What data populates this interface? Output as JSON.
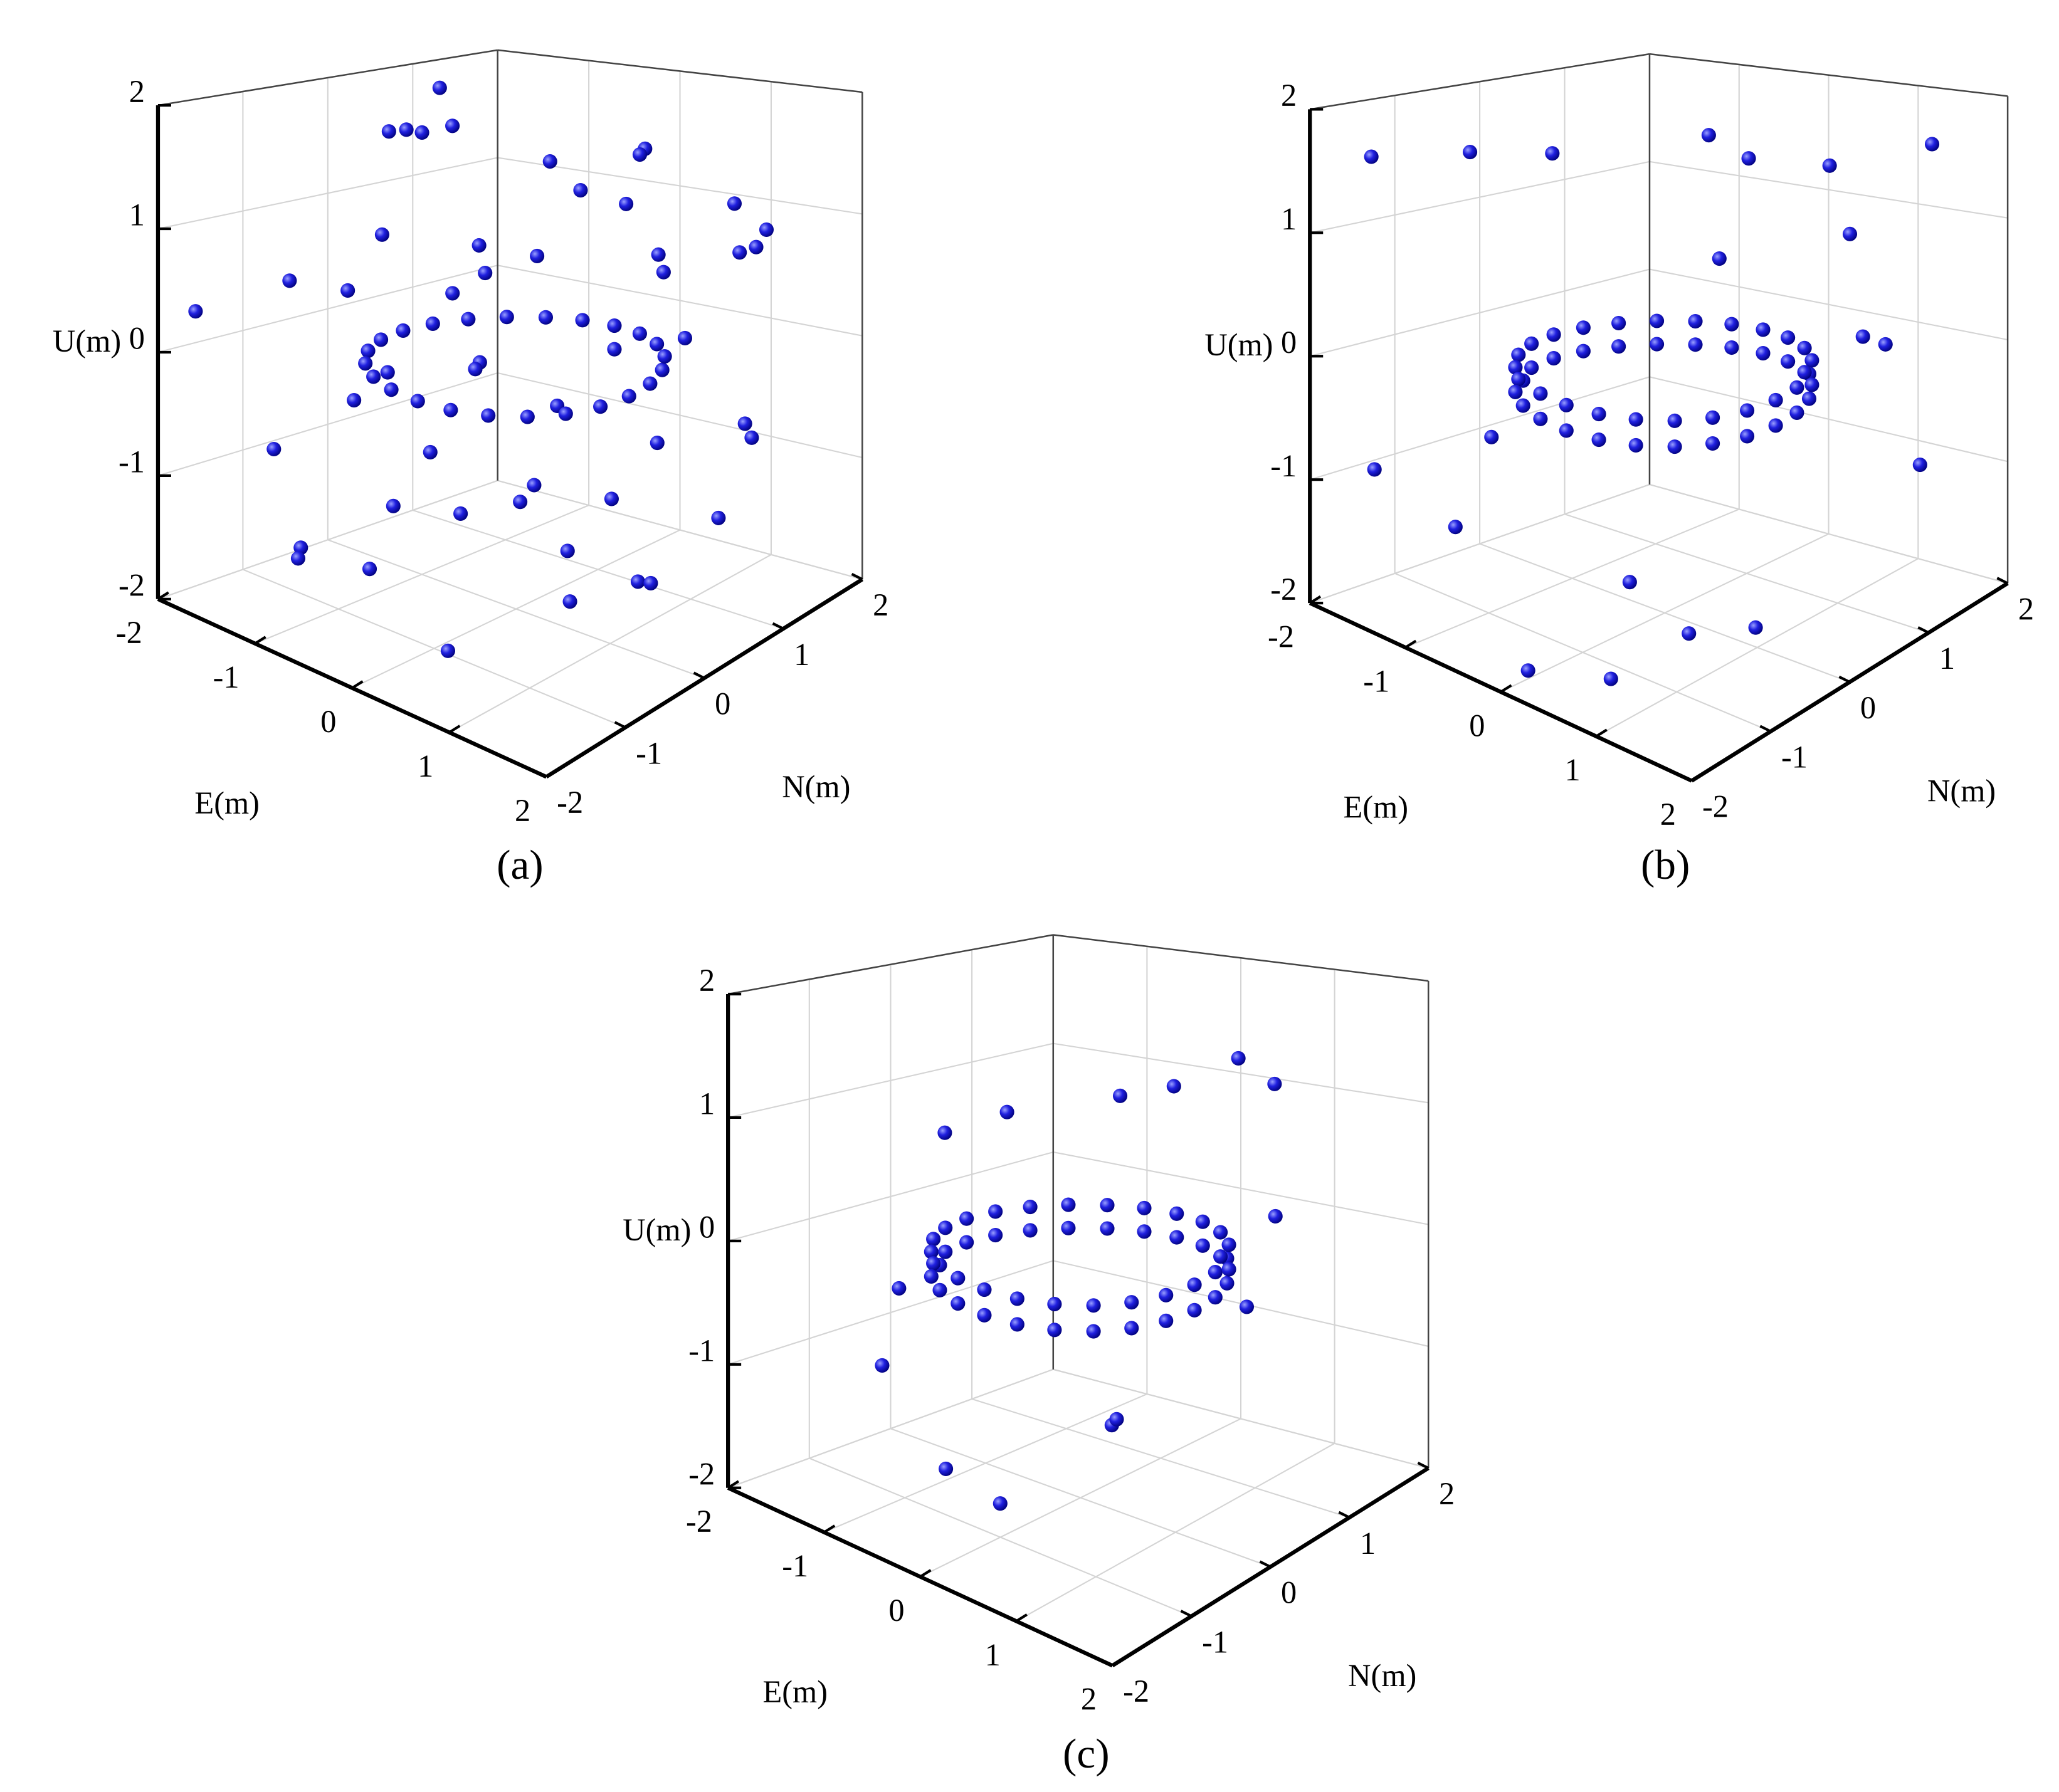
{
  "chart_data": [
    {
      "type": "scatter3d",
      "caption": "(a)",
      "xlabel": "E(m)",
      "ylabel": "N(m)",
      "zlabel": "U(m)",
      "color": "#1010d0",
      "xlim": [
        -2,
        2
      ],
      "ylim": [
        -2,
        2
      ],
      "zlim": [
        -2,
        2
      ],
      "xticks": [
        -2,
        -1,
        0,
        1,
        2
      ],
      "yticks": [
        -2,
        -1,
        0,
        1,
        2
      ],
      "zticks": [
        -2,
        -1,
        0,
        1,
        2
      ],
      "grid": true,
      "x": [
        -1.8,
        -1.5,
        -1.2,
        -0.9,
        -0.6,
        -0.3,
        0,
        0.3,
        0.6,
        0.9,
        1.2,
        1.5,
        1.8,
        -1.7,
        -1.3,
        -0.8,
        -0.4,
        0.2,
        0.7,
        1.1,
        1.6,
        -1.9,
        -1.1,
        -0.5,
        0.4,
        0.8,
        1.4,
        -1.6,
        -1.0,
        -0.2,
        0.5,
        1.0,
        1.7,
        -1.4,
        -0.7,
        0.1,
        0.9,
        1.3,
        -1.2,
        -0.1,
        0.6,
        1.5,
        -1.8,
        -0.9,
        0.3,
        1.1,
        1.9,
        -0.6,
        0.0,
        0.7,
        1.2,
        1.16,
        1.04,
        0.85,
        0.6,
        0.31,
        0,
        -0.31,
        -0.6,
        -0.85,
        -1.04,
        -1.16,
        -1.2,
        -1.16,
        -1.04,
        -0.85,
        -0.6,
        -0.31,
        0,
        0.31,
        0.6,
        0.85,
        1.04,
        1.16
      ],
      "y": [
        0.5,
        -1.2,
        1.6,
        -0.3,
        0.9,
        -1.7,
        1.2,
        -0.8,
        1.8,
        -1.5,
        0.2,
        1.1,
        -0.6,
        -1.9,
        0.7,
        1.4,
        -1.1,
        0.4,
        -1.6,
        1.7,
        -0.2,
        1.0,
        -0.7,
        1.9,
        -1.3,
        0.6,
        1.3,
        -0.9,
        0.1,
        -1.4,
        1.5,
        -0.5,
        0.8,
        1.2,
        -1.8,
        0.3,
        -1.0,
        1.6,
        -0.4,
        0.9,
        -1.2,
        0.0,
        1.1,
        -1.6,
        1.4,
        -0.1,
        0.5,
        -0.8,
        1.8,
        -1.5,
        0,
        0.31,
        0.6,
        0.85,
        1.04,
        1.16,
        1.2,
        1.16,
        1.04,
        0.85,
        0.6,
        0.31,
        0,
        -0.31,
        -0.6,
        -0.85,
        -1.04,
        -1.16,
        -1.2,
        -1.16,
        -1.04,
        -0.85,
        -0.6,
        -0.31
      ],
      "z": [
        1.5,
        -0.8,
        0.3,
        1.8,
        -1.4,
        0.9,
        -0.2,
        1.2,
        -1.7,
        0.6,
        1.9,
        -0.5,
        -1.1,
        0.4,
        1.6,
        -0.9,
        0.1,
        -1.6,
        1.1,
        0.7,
        -1.3,
        1.4,
        -0.4,
        0.8,
        -1.8,
        1.7,
        -0.7,
        0.5,
        -1.0,
        1.3,
        -0.1,
        -1.5,
        1.0,
        0.2,
        -1.2,
        1.6,
        -0.6,
        0.9,
        -1.9,
        1.2,
        0.4,
        -0.3,
        1.8,
        -1.4,
        0.6,
        -0.8,
        1.5,
        -1.1,
        0.3,
        -0.6,
        0,
        0,
        0,
        0,
        0,
        0,
        0,
        0,
        0,
        0,
        0,
        0,
        0,
        0,
        0,
        0,
        0,
        0,
        0,
        0,
        0,
        0,
        0,
        0
      ]
    },
    {
      "type": "scatter3d",
      "caption": "(b)",
      "xlabel": "E(m)",
      "ylabel": "N(m)",
      "zlabel": "U(m)",
      "color": "#1010d0",
      "xlim": [
        -2,
        2
      ],
      "ylim": [
        -2,
        2
      ],
      "zlim": [
        -2,
        2
      ],
      "xticks": [
        -2,
        -1,
        0,
        1,
        2
      ],
      "yticks": [
        -2,
        -1,
        0,
        1,
        2
      ],
      "zticks": [
        -2,
        -1,
        0,
        1,
        2
      ],
      "grid": true,
      "x": [
        -1.8,
        -1.2,
        -0.5,
        0.3,
        1.0,
        1.6,
        -1.5,
        1.3,
        0.6,
        -0.8,
        1.8,
        1.5,
        -1.6,
        -1.0,
        0.9,
        1.2,
        0.2,
        -0.3,
        1.7,
        0.5,
        1.2,
        1.16,
        1.04,
        0.85,
        0.6,
        0.31,
        0,
        -0.31,
        -0.6,
        -0.85,
        -1.04,
        -1.16,
        -1.2,
        -1.16,
        -1.04,
        -0.85,
        -0.6,
        -0.31,
        0,
        0.31,
        0.6,
        0.85,
        1.04,
        1.16,
        1.2,
        1.16,
        1.04,
        0.85,
        0.6,
        0.31,
        0,
        -0.31,
        -0.6,
        -0.85,
        -1.04,
        -1.16,
        -1.2,
        -1.16,
        -1.04,
        -0.85,
        -0.6,
        -0.31,
        0,
        0.31,
        0.6,
        0.85,
        1.04,
        1.16
      ],
      "y": [
        -1.5,
        -1.0,
        -0.8,
        0.2,
        0.9,
        1.5,
        -1.8,
        -1.2,
        1.6,
        1.9,
        0.4,
        -0.6,
        -0.3,
        -1.4,
        -1.7,
        1.8,
        -1.9,
        1.0,
        0.8,
        -1.0,
        0,
        0.31,
        0.6,
        0.85,
        1.04,
        1.16,
        1.2,
        1.16,
        1.04,
        0.85,
        0.6,
        0.31,
        0,
        -0.31,
        -0.6,
        -0.85,
        -1.04,
        -1.16,
        -1.2,
        -1.16,
        -1.04,
        -0.85,
        -0.6,
        -0.31,
        0,
        0.31,
        0.6,
        0.85,
        1.04,
        1.16,
        1.2,
        1.16,
        1.04,
        0.85,
        0.6,
        0.31,
        0,
        -0.31,
        -0.6,
        -0.85,
        -1.04,
        -1.16,
        -1.2,
        -1.16,
        -1.04,
        -0.85,
        -0.6,
        -0.31
      ],
      "z": [
        1.6,
        1.7,
        1.8,
        1.9,
        1.6,
        1.7,
        -0.8,
        -1.4,
        0.8,
        1.2,
        0.5,
        -1.5,
        -0.9,
        -1.2,
        -1.7,
        -1.1,
        -1.8,
        0.6,
        0.3,
        -1.3,
        0,
        0,
        0,
        0,
        0,
        0,
        0,
        0,
        0,
        0,
        0,
        0,
        0,
        0,
        0,
        0,
        0,
        0,
        0,
        0,
        0,
        0,
        0,
        0,
        -0.2,
        -0.2,
        -0.2,
        -0.2,
        -0.2,
        -0.2,
        -0.2,
        -0.2,
        -0.2,
        -0.2,
        -0.2,
        -0.2,
        -0.2,
        -0.2,
        -0.2,
        -0.2,
        -0.2,
        -0.2,
        -0.2,
        -0.2,
        -0.2,
        -0.2,
        -0.2,
        -0.2
      ]
    },
    {
      "type": "scatter3d",
      "caption": "(c)",
      "xlabel": "E(m)",
      "ylabel": "N(m)",
      "zlabel": "U(m)",
      "color": "#1010d0",
      "xlim": [
        -2,
        2
      ],
      "ylim": [
        -2,
        2
      ],
      "zlim": [
        -2,
        2
      ],
      "xticks": [
        -2,
        -1,
        0,
        1,
        2
      ],
      "yticks": [
        -2,
        -1,
        0,
        1,
        2
      ],
      "zticks": [
        -2,
        -1,
        0,
        1,
        2
      ],
      "grid": true,
      "x": [
        -1.2,
        -0.6,
        0.4,
        0.7,
        1.0,
        -1.4,
        1.3,
        -0.9,
        0.1,
        0.5,
        -0.2,
        1.5,
        -1.6,
        0.8,
        1.2,
        1.16,
        1.04,
        0.85,
        0.6,
        0.31,
        0,
        -0.31,
        -0.6,
        -0.85,
        -1.04,
        -1.16,
        -1.2,
        -1.16,
        -1.04,
        -0.85,
        -0.6,
        -0.31,
        0,
        0.31,
        0.6,
        0.85,
        1.04,
        1.16,
        1.2,
        1.16,
        1.04,
        0.85,
        0.6,
        0.31,
        0,
        -0.31,
        -0.6,
        -0.85,
        -1.04,
        -1.16,
        -1.2,
        -1.16,
        -1.04,
        -0.85,
        -0.6,
        -0.31,
        0,
        0.31,
        0.6,
        0.85,
        1.04,
        1.16
      ],
      "y": [
        0.5,
        1.2,
        1.5,
        1.6,
        -0.8,
        -0.6,
        0.9,
        -1.4,
        -1.8,
        -1.6,
        1.4,
        0.3,
        0.2,
        -0.5,
        0,
        0.31,
        0.6,
        0.85,
        1.04,
        1.16,
        1.2,
        1.16,
        1.04,
        0.85,
        0.6,
        0.31,
        0,
        -0.31,
        -0.6,
        -0.85,
        -1.04,
        -1.16,
        -1.2,
        -1.16,
        -1.04,
        -0.85,
        -0.6,
        -0.31,
        0,
        0.31,
        0.6,
        0.85,
        1.04,
        1.16,
        1.2,
        1.16,
        1.04,
        0.85,
        0.6,
        0.31,
        0,
        -0.31,
        -0.6,
        -0.85,
        -1.04,
        -1.16,
        -1.2,
        -1.16,
        -1.04,
        -0.85,
        -0.6,
        -0.31
      ],
      "z": [
        0.8,
        0.9,
        1.3,
        1.1,
        -0.9,
        -0.5,
        0.3,
        -0.8,
        -1.2,
        -1.4,
        1.0,
        -0.2,
        0.6,
        -1.0,
        0,
        0,
        0,
        0,
        0,
        0,
        0,
        0,
        0,
        0,
        0,
        0,
        0,
        0,
        0,
        0,
        0,
        0,
        0,
        0,
        0,
        0,
        0,
        0,
        -0.2,
        -0.2,
        -0.2,
        -0.2,
        -0.2,
        -0.2,
        -0.2,
        -0.2,
        -0.2,
        -0.2,
        -0.2,
        -0.2,
        -0.2,
        -0.2,
        -0.2,
        -0.2,
        -0.2,
        -0.2,
        -0.2,
        -0.2,
        -0.2,
        -0.2,
        -0.2,
        -0.2
      ]
    }
  ]
}
